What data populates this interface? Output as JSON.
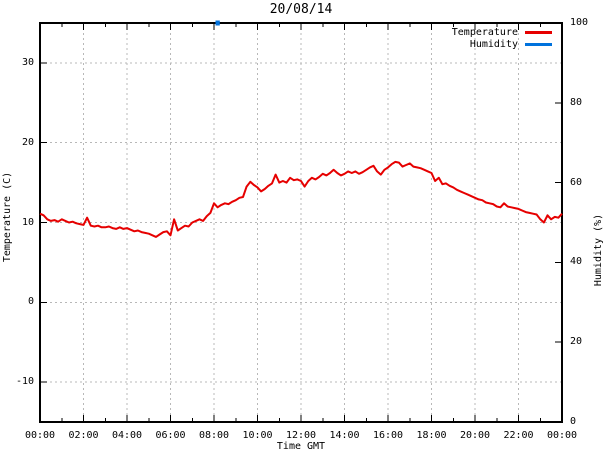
{
  "title": "20/08/14",
  "colors": {
    "temperature": "#e60000",
    "humidity": "#0072dd",
    "grid": "#b8b8b8",
    "border": "#000000",
    "background": "#ffffff"
  },
  "legend": {
    "position": "top-right",
    "entries": [
      {
        "label": "Temperature",
        "color": "#e60000"
      },
      {
        "label": "Humidity",
        "color": "#0072dd"
      }
    ]
  },
  "chart_data": {
    "type": "line",
    "title": "20/08/14",
    "xlabel": "Time GMT",
    "ylabel_left": "Temperature (C)",
    "ylabel_right": "Humidity (%)",
    "grid": true,
    "x_range_minutes": [
      0,
      1440
    ],
    "x_ticks": [
      "00:00",
      "02:00",
      "04:00",
      "06:00",
      "08:00",
      "10:00",
      "12:00",
      "14:00",
      "16:00",
      "18:00",
      "20:00",
      "22:00",
      "00:00"
    ],
    "x_minor_tick_minutes": 60,
    "y_left_range": [
      -15,
      35
    ],
    "y_left_ticks": [
      -10,
      0,
      10,
      20,
      30
    ],
    "y_right_range": [
      0,
      100
    ],
    "y_right_ticks": [
      0,
      20,
      40,
      60,
      80,
      100
    ],
    "series": [
      {
        "name": "Temperature",
        "axis": "left",
        "color": "#e60000",
        "width": 2,
        "points": [
          [
            0,
            11.1
          ],
          [
            10,
            10.9
          ],
          [
            20,
            10.4
          ],
          [
            30,
            10.2
          ],
          [
            40,
            10.3
          ],
          [
            50,
            10.1
          ],
          [
            60,
            10.4
          ],
          [
            70,
            10.2
          ],
          [
            80,
            10.0
          ],
          [
            90,
            10.1
          ],
          [
            100,
            9.9
          ],
          [
            110,
            9.8
          ],
          [
            120,
            9.7
          ],
          [
            130,
            10.6
          ],
          [
            140,
            9.6
          ],
          [
            150,
            9.5
          ],
          [
            160,
            9.6
          ],
          [
            170,
            9.4
          ],
          [
            180,
            9.4
          ],
          [
            190,
            9.5
          ],
          [
            200,
            9.3
          ],
          [
            210,
            9.2
          ],
          [
            220,
            9.4
          ],
          [
            230,
            9.2
          ],
          [
            240,
            9.3
          ],
          [
            250,
            9.1
          ],
          [
            260,
            8.9
          ],
          [
            270,
            9.0
          ],
          [
            280,
            8.8
          ],
          [
            290,
            8.7
          ],
          [
            300,
            8.6
          ],
          [
            310,
            8.4
          ],
          [
            320,
            8.2
          ],
          [
            330,
            8.5
          ],
          [
            340,
            8.8
          ],
          [
            350,
            8.9
          ],
          [
            360,
            8.4
          ],
          [
            370,
            10.4
          ],
          [
            380,
            9.0
          ],
          [
            390,
            9.3
          ],
          [
            400,
            9.6
          ],
          [
            410,
            9.5
          ],
          [
            420,
            10.0
          ],
          [
            430,
            10.2
          ],
          [
            440,
            10.4
          ],
          [
            450,
            10.2
          ],
          [
            460,
            10.8
          ],
          [
            470,
            11.2
          ],
          [
            480,
            12.4
          ],
          [
            490,
            11.9
          ],
          [
            500,
            12.2
          ],
          [
            510,
            12.4
          ],
          [
            520,
            12.3
          ],
          [
            530,
            12.6
          ],
          [
            540,
            12.8
          ],
          [
            550,
            13.1
          ],
          [
            560,
            13.2
          ],
          [
            570,
            14.5
          ],
          [
            580,
            15.1
          ],
          [
            590,
            14.7
          ],
          [
            600,
            14.4
          ],
          [
            610,
            13.9
          ],
          [
            620,
            14.2
          ],
          [
            630,
            14.6
          ],
          [
            640,
            14.9
          ],
          [
            650,
            16.0
          ],
          [
            660,
            15.0
          ],
          [
            670,
            15.2
          ],
          [
            680,
            15.0
          ],
          [
            690,
            15.6
          ],
          [
            700,
            15.3
          ],
          [
            710,
            15.4
          ],
          [
            720,
            15.2
          ],
          [
            730,
            14.5
          ],
          [
            740,
            15.2
          ],
          [
            750,
            15.6
          ],
          [
            760,
            15.4
          ],
          [
            770,
            15.7
          ],
          [
            780,
            16.1
          ],
          [
            790,
            15.9
          ],
          [
            800,
            16.2
          ],
          [
            810,
            16.6
          ],
          [
            820,
            16.2
          ],
          [
            830,
            15.9
          ],
          [
            840,
            16.1
          ],
          [
            850,
            16.4
          ],
          [
            860,
            16.2
          ],
          [
            870,
            16.4
          ],
          [
            880,
            16.1
          ],
          [
            890,
            16.3
          ],
          [
            900,
            16.6
          ],
          [
            910,
            16.9
          ],
          [
            920,
            17.1
          ],
          [
            930,
            16.4
          ],
          [
            940,
            16.0
          ],
          [
            950,
            16.6
          ],
          [
            960,
            16.9
          ],
          [
            970,
            17.3
          ],
          [
            980,
            17.6
          ],
          [
            990,
            17.5
          ],
          [
            1000,
            17.0
          ],
          [
            1010,
            17.2
          ],
          [
            1020,
            17.4
          ],
          [
            1030,
            17.0
          ],
          [
            1040,
            16.9
          ],
          [
            1050,
            16.8
          ],
          [
            1060,
            16.6
          ],
          [
            1070,
            16.4
          ],
          [
            1080,
            16.2
          ],
          [
            1090,
            15.2
          ],
          [
            1100,
            15.6
          ],
          [
            1110,
            14.8
          ],
          [
            1120,
            14.9
          ],
          [
            1130,
            14.6
          ],
          [
            1140,
            14.4
          ],
          [
            1150,
            14.1
          ],
          [
            1160,
            13.9
          ],
          [
            1170,
            13.7
          ],
          [
            1180,
            13.5
          ],
          [
            1190,
            13.3
          ],
          [
            1200,
            13.1
          ],
          [
            1210,
            12.9
          ],
          [
            1220,
            12.8
          ],
          [
            1230,
            12.5
          ],
          [
            1240,
            12.4
          ],
          [
            1250,
            12.3
          ],
          [
            1260,
            12.0
          ],
          [
            1270,
            11.9
          ],
          [
            1280,
            12.4
          ],
          [
            1290,
            12.0
          ],
          [
            1300,
            11.9
          ],
          [
            1310,
            11.8
          ],
          [
            1320,
            11.7
          ],
          [
            1330,
            11.5
          ],
          [
            1340,
            11.3
          ],
          [
            1350,
            11.2
          ],
          [
            1360,
            11.1
          ],
          [
            1370,
            11.0
          ],
          [
            1380,
            10.4
          ],
          [
            1390,
            10.0
          ],
          [
            1400,
            10.9
          ],
          [
            1410,
            10.4
          ],
          [
            1420,
            10.7
          ],
          [
            1430,
            10.6
          ],
          [
            1440,
            11.1
          ]
        ]
      },
      {
        "name": "Humidity",
        "axis": "right",
        "color": "#0072dd",
        "width": 5,
        "points": [
          [
            484,
            100
          ],
          [
            496,
            100
          ]
        ]
      }
    ]
  }
}
